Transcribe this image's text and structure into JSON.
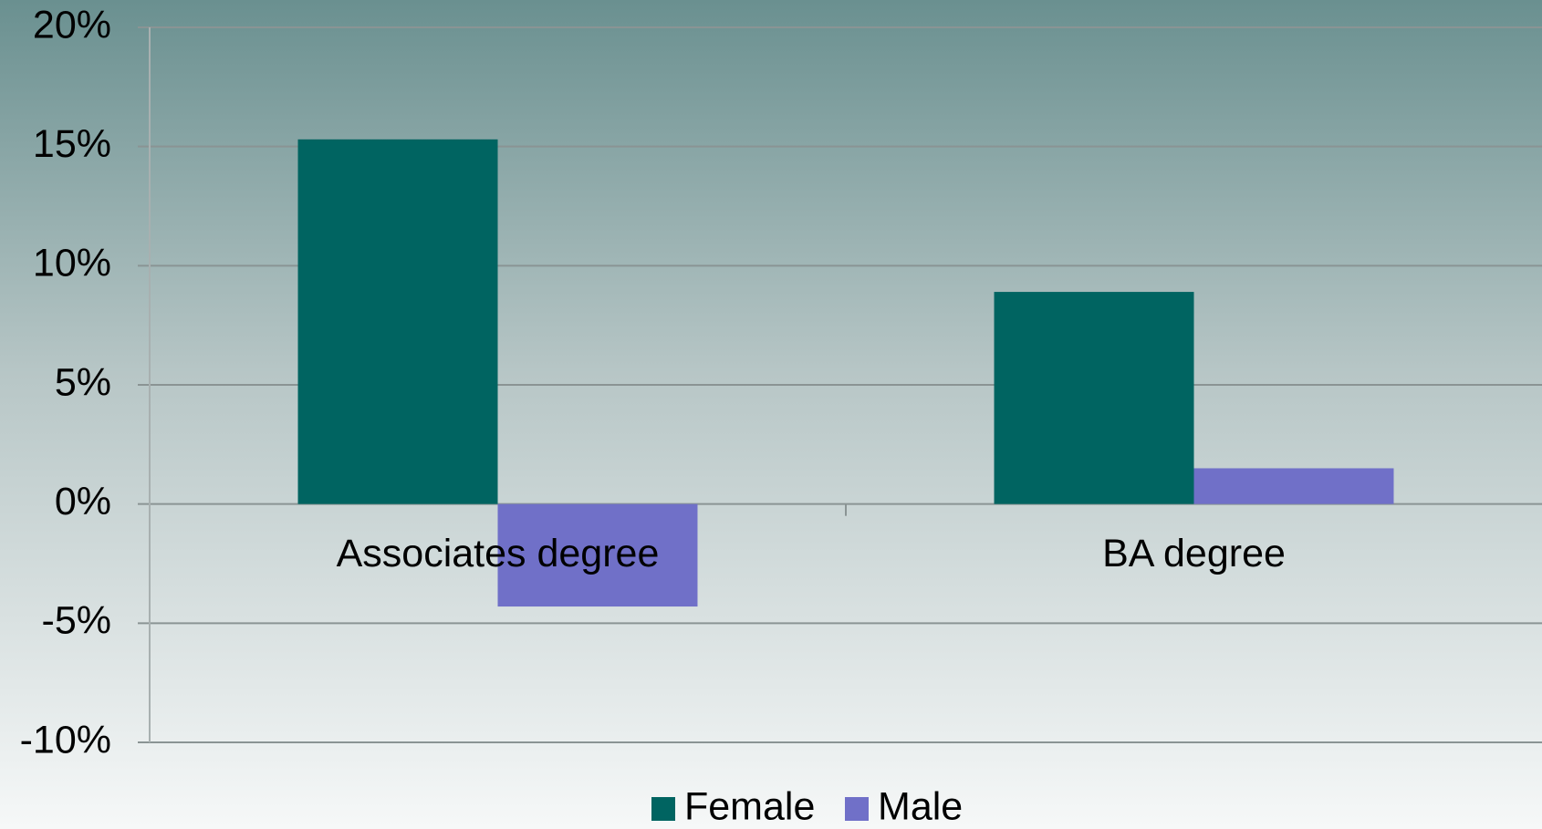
{
  "chart_data": {
    "type": "bar",
    "categories": [
      "Associates degree",
      "BA degree"
    ],
    "series": [
      {
        "name": "Female",
        "color": "#006461",
        "values": [
          15.3,
          8.9
        ]
      },
      {
        "name": "Male",
        "color": "#7070c8",
        "values": [
          -4.3,
          1.5
        ]
      }
    ],
    "ylim": [
      -10,
      20
    ],
    "yticks": [
      {
        "value": -10,
        "label": "-10%"
      },
      {
        "value": -5,
        "label": "-5%"
      },
      {
        "value": 0,
        "label": "0%"
      },
      {
        "value": 5,
        "label": "5%"
      },
      {
        "value": 10,
        "label": "10%"
      },
      {
        "value": 15,
        "label": "15%"
      },
      {
        "value": 20,
        "label": "20%"
      }
    ],
    "grid": true,
    "legend": "bottom"
  }
}
